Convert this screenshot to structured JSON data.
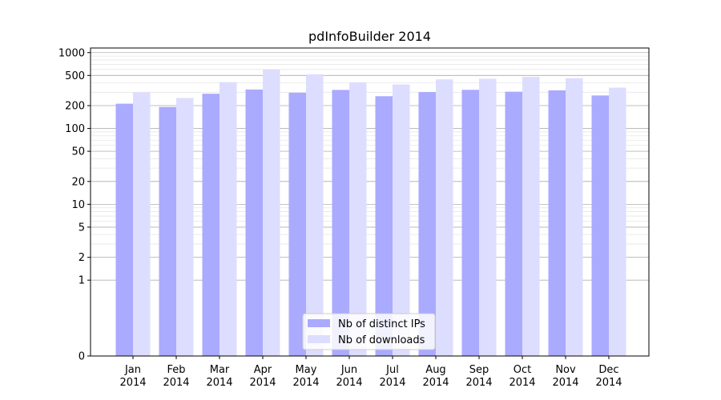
{
  "chart_data": {
    "type": "bar",
    "title": "pdInfoBuilder 2014",
    "categories": [
      "Jan",
      "Feb",
      "Mar",
      "Apr",
      "May",
      "Jun",
      "Jul",
      "Aug",
      "Sep",
      "Oct",
      "Nov",
      "Dec"
    ],
    "category_year": "2014",
    "series": [
      {
        "name": "Nb of distinct IPs",
        "color": "#aaaaff",
        "values": [
          212,
          192,
          287,
          326,
          296,
          322,
          266,
          302,
          323,
          305,
          318,
          272
        ]
      },
      {
        "name": "Nb of downloads",
        "color": "#ddddff",
        "values": [
          298,
          252,
          408,
          597,
          518,
          406,
          380,
          443,
          452,
          478,
          460,
          345
        ]
      }
    ],
    "yscale": "symlog",
    "ylim": [
      0,
      1150
    ],
    "yticks": [
      0,
      1,
      2,
      5,
      10,
      20,
      50,
      100,
      200,
      500,
      1000
    ],
    "ytick_labels": [
      "0",
      "1",
      "2",
      "5",
      "10",
      "20",
      "50",
      "100",
      "200",
      "500",
      "1000"
    ],
    "grid": true,
    "legend_position": "lower-center"
  }
}
